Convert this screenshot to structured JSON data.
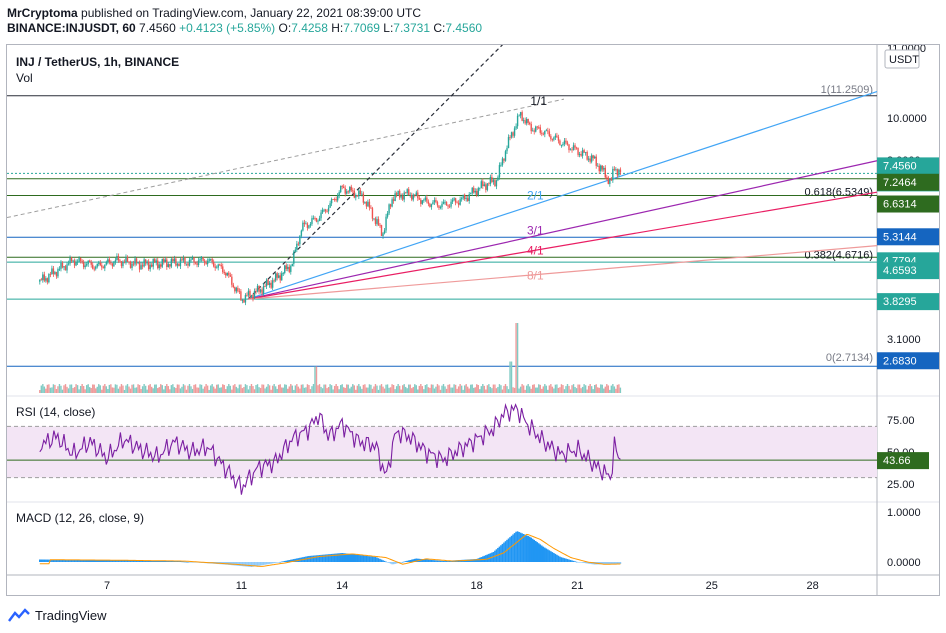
{
  "header": {
    "author": "MrCryptoma",
    "published": "published on TradingView.com, January 22, 2021 08:39:00 UTC",
    "symbol": "BINANCE:INJUSDT, 60",
    "last": "7.4560",
    "change": "+0.4123 (+5.85%)",
    "o_label": "O:",
    "o": "7.4258",
    "h_label": "H:",
    "h": "7.7069",
    "l_label": "L:",
    "l": "7.3731",
    "c_label": "C:",
    "c": "7.4560"
  },
  "panes": {
    "price_title": "INJ / TetherUS, 1h, BINANCE",
    "vol_label": "Vol",
    "rsi_label": "RSI (14, close)",
    "macd_label": "MACD (12, 26, close, 9)"
  },
  "footer": {
    "brand": "TradingView"
  },
  "colors": {
    "up": "#26a69a",
    "down": "#ef5350",
    "fan_blue": "#42a5f5",
    "fan_purple": "#9c27b0",
    "fan_red": "#e91e63",
    "fan_pink": "#ef9a9a",
    "rsi_line": "#7b1fa2",
    "rsi_band": "#f3e5f5",
    "macd_hist": "#2196f3",
    "signal": "#ff9800",
    "badge_green": "#26a69a",
    "badge_dark": "#2e6b1f",
    "badge_blue": "#1565c0"
  },
  "chart_data": {
    "type": "candlestick",
    "currency": "USDT",
    "x_ticks": [
      "7",
      "11",
      "14",
      "18",
      "21",
      "25",
      "28"
    ],
    "price_axis": {
      "scale": "log",
      "ticks": [
        "10.0000",
        "8.0000",
        "3.1000"
      ],
      "partial_top_tick": "11.0000",
      "range": [
        2.6,
        14.5
      ]
    },
    "price_path": [
      [
        5,
        4.2
      ],
      [
        6,
        4.7
      ],
      [
        6.7,
        4.55
      ],
      [
        7.3,
        4.7
      ],
      [
        8,
        4.6
      ],
      [
        9,
        4.65
      ],
      [
        10,
        4.7
      ],
      [
        10.5,
        4.45
      ],
      [
        11,
        3.83
      ],
      [
        11.5,
        4.0
      ],
      [
        12,
        4.25
      ],
      [
        12.5,
        4.6
      ],
      [
        12.8,
        5.6
      ],
      [
        13.3,
        5.9
      ],
      [
        13.7,
        6.4
      ],
      [
        14,
        6.9
      ],
      [
        14.6,
        6.6
      ],
      [
        15.2,
        5.4
      ],
      [
        15.5,
        6.6
      ],
      [
        16,
        6.7
      ],
      [
        16.5,
        6.4
      ],
      [
        17,
        6.3
      ],
      [
        17.6,
        6.5
      ],
      [
        18.2,
        7.0
      ],
      [
        18.6,
        7.2
      ],
      [
        18.9,
        8.6
      ],
      [
        19.3,
        10.2
      ],
      [
        19.6,
        9.5
      ],
      [
        20,
        9.3
      ],
      [
        20.5,
        8.8
      ],
      [
        21,
        8.4
      ],
      [
        21.5,
        8.0
      ],
      [
        22,
        7.1
      ],
      [
        22.1,
        7.7
      ],
      [
        22.3,
        7.46
      ]
    ],
    "fibonacci": [
      {
        "level": "1",
        "value": "11.2509"
      },
      {
        "level": "0.618",
        "value": "6.5349"
      },
      {
        "level": "0.382",
        "value": "4.6716"
      },
      {
        "level": "0",
        "value": "2.7134"
      }
    ],
    "gann_fan_labels": [
      "1/1",
      "2/1",
      "3/1",
      "4/1",
      "8/1"
    ],
    "price_labels": [
      {
        "value": "7.4560",
        "color": "#26a69a"
      },
      {
        "value": "21:02",
        "color": "#26a69a"
      },
      {
        "value": "7.2464",
        "color": "#2e6b1f"
      },
      {
        "value": "6.6314",
        "color": "#2e6b1f"
      },
      {
        "value": "5.3144",
        "color": "#1565c0"
      },
      {
        "value": "4.7794",
        "color": "#26a69a"
      },
      {
        "value": "4.6593",
        "color": "#26a69a"
      },
      {
        "value": "3.8295",
        "color": "#26a69a"
      },
      {
        "value": "2.6830",
        "color": "#1565c0"
      }
    ],
    "horizontal_levels": [
      11.2509,
      7.456,
      7.2464,
      6.6314,
      5.3144,
      4.7794,
      4.6593,
      3.8295,
      2.683
    ],
    "volume_spikes": [
      {
        "x": 13.2,
        "relative": 0.38
      },
      {
        "x": 19.2,
        "relative": 1.0
      },
      {
        "x": 19.0,
        "relative": 0.45
      }
    ],
    "rsi": {
      "ticks": [
        "75.00",
        "50.00",
        "25.00"
      ],
      "upper": 70,
      "lower": 30,
      "current": "43.66",
      "path": [
        [
          5,
          55
        ],
        [
          5.5,
          62
        ],
        [
          6,
          48
        ],
        [
          6.5,
          58
        ],
        [
          7,
          45
        ],
        [
          7.5,
          60
        ],
        [
          8,
          52
        ],
        [
          8.5,
          46
        ],
        [
          9,
          58
        ],
        [
          9.5,
          50
        ],
        [
          10,
          54
        ],
        [
          10.5,
          38
        ],
        [
          11,
          22
        ],
        [
          11.5,
          38
        ],
        [
          12,
          42
        ],
        [
          12.5,
          60
        ],
        [
          13,
          68
        ],
        [
          13.3,
          79
        ],
        [
          13.6,
          62
        ],
        [
          14,
          72
        ],
        [
          14.5,
          58
        ],
        [
          15,
          55
        ],
        [
          15.3,
          30
        ],
        [
          15.6,
          66
        ],
        [
          16,
          62
        ],
        [
          16.5,
          50
        ],
        [
          17,
          44
        ],
        [
          17.5,
          52
        ],
        [
          18,
          60
        ],
        [
          18.5,
          68
        ],
        [
          18.8,
          80
        ],
        [
          19.2,
          84
        ],
        [
          19.5,
          72
        ],
        [
          20,
          58
        ],
        [
          20.5,
          48
        ],
        [
          21,
          52
        ],
        [
          21.5,
          40
        ],
        [
          22,
          30
        ],
        [
          22.1,
          54
        ],
        [
          22.3,
          43.66
        ]
      ]
    },
    "macd": {
      "ticks": [
        "1.0000",
        "0.0000"
      ],
      "path": [
        [
          5,
          0.05
        ],
        [
          7,
          0.04
        ],
        [
          9,
          0.02
        ],
        [
          10.5,
          -0.05
        ],
        [
          11.3,
          -0.1
        ],
        [
          12,
          -0.02
        ],
        [
          13,
          0.12
        ],
        [
          14,
          0.18
        ],
        [
          15,
          0.1
        ],
        [
          15.5,
          -0.05
        ],
        [
          16.2,
          0.07
        ],
        [
          17,
          0.02
        ],
        [
          18,
          0.06
        ],
        [
          18.5,
          0.2
        ],
        [
          19.2,
          0.62
        ],
        [
          19.6,
          0.5
        ],
        [
          20,
          0.3
        ],
        [
          20.5,
          0.1
        ],
        [
          21,
          0.0
        ],
        [
          21.5,
          -0.05
        ],
        [
          22.3,
          -0.04
        ]
      ]
    }
  }
}
